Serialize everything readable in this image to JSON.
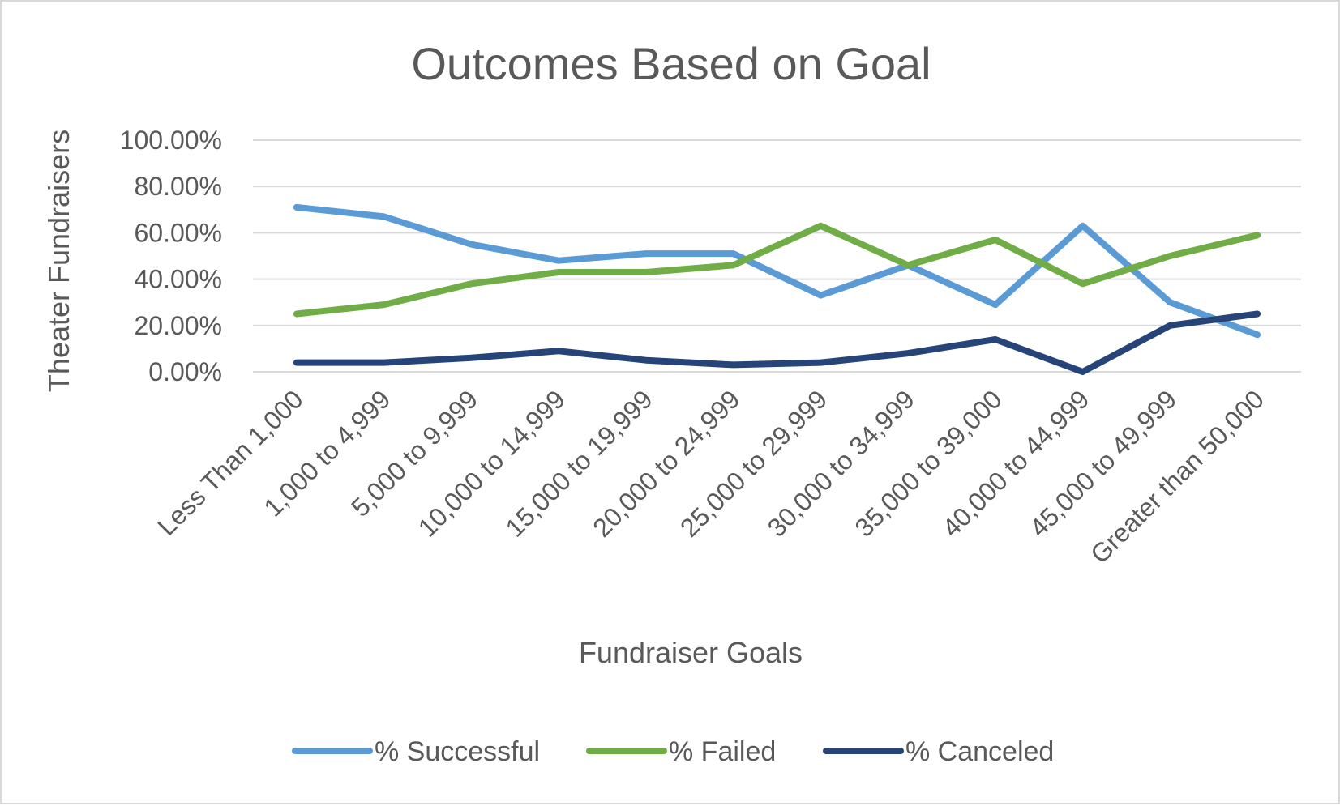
{
  "chart_data": {
    "type": "line",
    "title": "Outcomes Based on Goal",
    "xlabel": "Fundraiser Goals",
    "ylabel": "Theater Fundraisers",
    "categories": [
      "Less Than 1,000",
      "1,000 to 4,999",
      "5,000 to 9,999",
      "10,000 to 14,999",
      "15,000 to 19,999",
      "20,000 to 24,999",
      "25,000 to 29,999",
      "30,000 to 34,999",
      "35,000 to 39,000",
      "40,000 to 44,999",
      "45,000 to 49,999",
      "Greater than 50,000"
    ],
    "ylim": [
      0,
      1
    ],
    "yticks": [
      "0.00%",
      "20.00%",
      "40.00%",
      "60.00%",
      "80.00%",
      "100.00%"
    ],
    "grid": true,
    "legend_position": "bottom",
    "series": [
      {
        "name": "% Successful",
        "color": "#5b9bd5",
        "values": [
          0.71,
          0.67,
          0.55,
          0.48,
          0.51,
          0.51,
          0.33,
          0.46,
          0.29,
          0.63,
          0.3,
          0.16
        ]
      },
      {
        "name": "% Failed",
        "color": "#70ad47",
        "values": [
          0.25,
          0.29,
          0.38,
          0.43,
          0.43,
          0.46,
          0.63,
          0.46,
          0.57,
          0.38,
          0.5,
          0.59
        ]
      },
      {
        "name": "% Canceled",
        "color": "#264478",
        "values": [
          0.04,
          0.04,
          0.06,
          0.09,
          0.05,
          0.03,
          0.04,
          0.08,
          0.14,
          0.0,
          0.2,
          0.25
        ]
      }
    ]
  }
}
